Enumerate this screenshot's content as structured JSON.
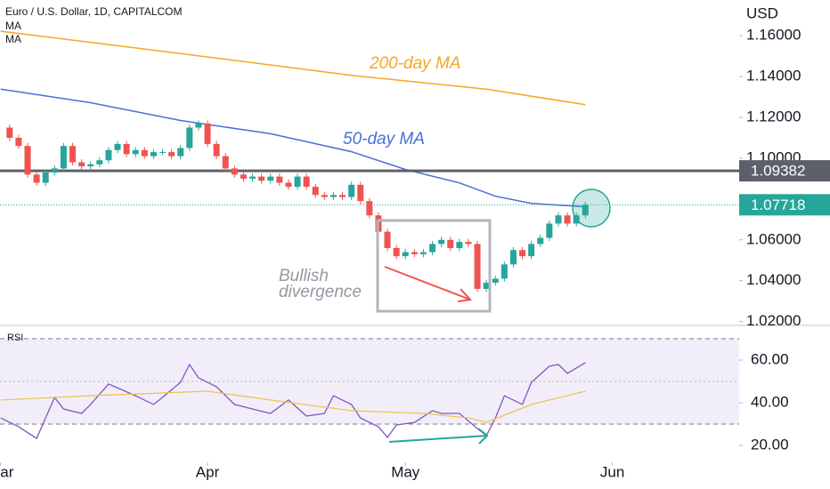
{
  "chart_data": [
    {
      "type": "candlestick",
      "title": "Euro / U.S. Dollar, 1D, CAPITALCOM",
      "unit": "USD",
      "xlim": [
        -23.07,
        59.1
      ],
      "xticks": [
        {
          "value": -23,
          "label": "Mar"
        },
        {
          "value": 0,
          "label": "Apr"
        },
        {
          "value": 22,
          "label": "May"
        },
        {
          "value": 45,
          "label": "Jun"
        }
      ],
      "ylim": [
        1.0181,
        1.1775
      ],
      "yticks": [
        {
          "value": 1.02,
          "label": "1.02000"
        },
        {
          "value": 1.04,
          "label": "1.04000"
        },
        {
          "value": 1.06,
          "label": "1.06000"
        },
        {
          "value": 1.1,
          "label": "1.10000"
        },
        {
          "value": 1.12,
          "label": "1.12000"
        },
        {
          "value": 1.14,
          "label": "1.14000"
        },
        {
          "value": 1.16,
          "label": "1.16000"
        }
      ],
      "up_color": "#26a69a",
      "down_color": "#ef5350",
      "x": [
        -22,
        -21,
        -20,
        -19,
        -18,
        -17,
        -16,
        -15,
        -14,
        -13,
        -12,
        -11,
        -10,
        -9,
        -8,
        -7,
        -6,
        -5,
        -4,
        -3,
        -2,
        -1,
        0,
        1,
        2,
        3,
        4,
        5,
        6,
        7,
        8,
        9,
        10,
        11,
        12,
        13,
        14,
        15,
        16,
        17,
        18,
        19,
        20,
        21,
        22,
        23,
        24,
        25,
        26,
        27,
        28,
        29,
        30,
        31,
        32,
        33,
        34,
        35,
        36,
        37,
        38,
        39,
        40,
        41,
        42
      ],
      "open": [
        1.115,
        1.11,
        1.106,
        1.092,
        1.088,
        1.093,
        1.095,
        1.106,
        1.098,
        1.096,
        1.097,
        1.099,
        1.104,
        1.107,
        1.102,
        1.104,
        1.101,
        1.103,
        1.103,
        1.101,
        1.105,
        1.115,
        1.117,
        1.107,
        1.101,
        1.095,
        1.092,
        1.09,
        1.091,
        1.089,
        1.091,
        1.088,
        1.086,
        1.091,
        1.086,
        1.082,
        1.081,
        1.082,
        1.081,
        1.087,
        1.079,
        1.072,
        1.064,
        1.056,
        1.052,
        1.054,
        1.053,
        1.054,
        1.058,
        1.06,
        1.056,
        1.059,
        1.058,
        1.036,
        1.039,
        1.041,
        1.048,
        1.055,
        1.052,
        1.058,
        1.061,
        1.068,
        1.072,
        1.068,
        1.072
      ],
      "close": [
        1.11,
        1.106,
        1.092,
        1.088,
        1.093,
        1.095,
        1.106,
        1.098,
        1.096,
        1.097,
        1.099,
        1.104,
        1.107,
        1.102,
        1.104,
        1.101,
        1.103,
        1.103,
        1.101,
        1.105,
        1.115,
        1.117,
        1.107,
        1.101,
        1.095,
        1.092,
        1.09,
        1.091,
        1.089,
        1.091,
        1.088,
        1.086,
        1.091,
        1.086,
        1.082,
        1.081,
        1.082,
        1.081,
        1.087,
        1.079,
        1.072,
        1.064,
        1.056,
        1.052,
        1.054,
        1.053,
        1.054,
        1.058,
        1.06,
        1.056,
        1.059,
        1.058,
        1.036,
        1.039,
        1.041,
        1.048,
        1.055,
        1.052,
        1.058,
        1.061,
        1.068,
        1.072,
        1.068,
        1.072,
        1.07718
      ],
      "high": [
        1.1165,
        1.1115,
        1.1075,
        1.0935,
        1.0945,
        1.0965,
        1.1075,
        1.1075,
        1.0995,
        1.0985,
        1.1005,
        1.1055,
        1.1085,
        1.1085,
        1.1055,
        1.1055,
        1.1045,
        1.1045,
        1.1045,
        1.1065,
        1.1165,
        1.1185,
        1.1185,
        1.1085,
        1.1025,
        1.0965,
        1.0935,
        1.0925,
        1.0925,
        1.0925,
        1.0925,
        1.0895,
        1.0925,
        1.0925,
        1.0875,
        1.0835,
        1.0835,
        1.0835,
        1.0885,
        1.0885,
        1.0805,
        1.0735,
        1.0655,
        1.0575,
        1.0555,
        1.0555,
        1.0555,
        1.0595,
        1.0615,
        1.0615,
        1.0605,
        1.0605,
        1.0595,
        1.0405,
        1.0425,
        1.0495,
        1.0565,
        1.0565,
        1.0595,
        1.0625,
        1.0695,
        1.0735,
        1.0735,
        1.0735,
        1.07868
      ],
      "low": [
        1.1085,
        1.1045,
        1.0905,
        1.0865,
        1.0865,
        1.0915,
        1.0935,
        1.0965,
        1.0945,
        1.0945,
        1.0955,
        1.0975,
        1.1025,
        1.1005,
        1.1005,
        1.0995,
        1.0995,
        1.1015,
        1.0995,
        1.0995,
        1.1035,
        1.1135,
        1.1055,
        1.0995,
        1.0935,
        1.0905,
        1.0885,
        1.0885,
        1.0875,
        1.0875,
        1.0865,
        1.0845,
        1.0845,
        1.0845,
        1.0805,
        1.0795,
        1.0795,
        1.0795,
        1.0795,
        1.0775,
        1.0705,
        1.0625,
        1.0545,
        1.0505,
        1.0505,
        1.0515,
        1.0515,
        1.0525,
        1.0565,
        1.0545,
        1.0545,
        1.0565,
        1.0345,
        1.0345,
        1.0375,
        1.0395,
        1.0465,
        1.0505,
        1.0505,
        1.0565,
        1.0595,
        1.0665,
        1.0665,
        1.0665,
        1.0705
      ],
      "series": [
        {
          "name": "MA",
          "color": "#f5a623",
          "x": [
            -23,
            -3,
            16,
            31,
            42
          ],
          "values": [
            1.1622,
            1.1513,
            1.1406,
            1.1338,
            1.1262
          ]
        },
        {
          "name": "MA",
          "color": "#4a6fd8",
          "x": [
            -23,
            -13,
            -3,
            7,
            16,
            22,
            28,
            32,
            36,
            42
          ],
          "values": [
            1.1338,
            1.1272,
            1.1185,
            1.112,
            1.1032,
            1.0945,
            1.0879,
            1.0814,
            1.0779,
            1.0762
          ]
        }
      ],
      "hlines": [
        {
          "value": 1.09382,
          "color": "#5d606b",
          "style": "solid"
        },
        {
          "value": 1.07718,
          "color": "#26a69a",
          "style": "dotted"
        }
      ],
      "annotations": [
        {
          "text": "200-day MA",
          "color": "#f5a623"
        },
        {
          "text": "50-day MA",
          "color": "#4a6fd8"
        },
        {
          "text": "Bullish",
          "color": "#9598a1"
        },
        {
          "text": "divergence",
          "color": "#9598a1"
        }
      ]
    },
    {
      "type": "line",
      "title": "RSI",
      "xlim": [
        -23.07,
        59.1
      ],
      "ylim": [
        12.1,
        75.4
      ],
      "yticks": [
        {
          "value": 20,
          "label": "20.00"
        },
        {
          "value": 40,
          "label": "40.00"
        },
        {
          "value": 60,
          "label": "60.00"
        }
      ],
      "bands": [
        30,
        70
      ],
      "midline": 50,
      "band_color": "#7e57c2",
      "series": [
        {
          "color": "#7e57c2",
          "x": [
            -23,
            -21,
            -19,
            -17,
            -16,
            -14,
            -13,
            -11,
            -8,
            -6,
            -5,
            -3,
            -2,
            -1,
            1,
            3,
            5,
            7,
            9,
            11,
            13,
            14,
            16,
            17,
            19,
            20,
            21,
            23,
            25,
            26,
            28,
            30,
            31,
            32,
            33,
            35,
            36,
            38,
            39,
            40,
            42
          ],
          "values": [
            32.9,
            28.8,
            23.3,
            42.5,
            37.1,
            35.0,
            39.2,
            48.8,
            43.3,
            39.2,
            42.5,
            49.6,
            57.9,
            51.7,
            47.5,
            39.2,
            37.1,
            35.0,
            41.3,
            33.8,
            35.0,
            43.3,
            39.2,
            32.9,
            28.8,
            23.8,
            29.6,
            30.8,
            36.3,
            35.0,
            35.0,
            27.9,
            24.6,
            32.9,
            43.3,
            39.2,
            49.6,
            57.1,
            57.9,
            53.8,
            58.8
          ]
        },
        {
          "color": "#f0c24f",
          "x": [
            -23,
            -13,
            0,
            7,
            16,
            24,
            29,
            31,
            36,
            42
          ],
          "values": [
            41.3,
            43.3,
            45.4,
            41.3,
            36.3,
            35.0,
            32.9,
            30.8,
            39.2,
            45.4
          ]
        }
      ]
    }
  ]
}
